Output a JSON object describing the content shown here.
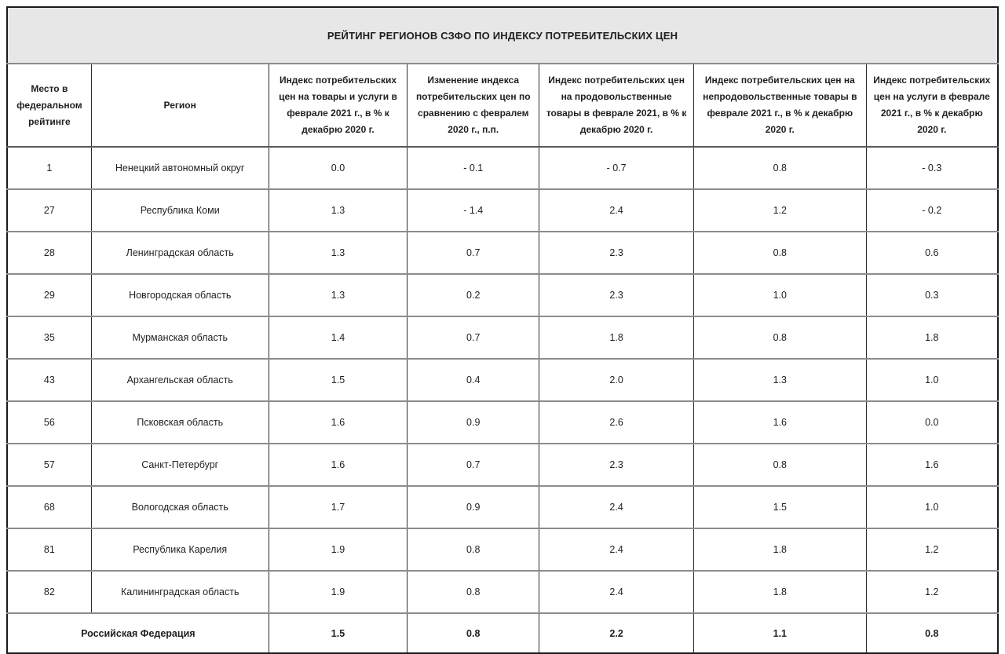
{
  "title": "РЕЙТИНГ РЕГИОНОВ СЗФО ПО ИНДЕКСУ ПОТРЕБИТЕЛЬСКИХ ЦЕН",
  "columns": [
    "Место в федеральном рейтинге",
    "Регион",
    "Индекс потребительских цен на товары и услуги в феврале 2021 г., в % к декабрю 2020 г.",
    "Изменение индекса потребительских цен по сравнению с февралем 2020 г., п.п.",
    "Индекс потребительских цен на продовольственные товары в феврале 2021, в % к декабрю 2020 г.",
    "Индекс потребительских цен на непродовольственные товары в феврале 2021 г., в % к декабрю 2020 г.",
    "Индекс потребительских цен на услуги в феврале 2021 г., в % к декабрю 2020 г."
  ],
  "rows": [
    {
      "place": "1",
      "region": "Ненецкий автономный округ",
      "values": [
        "0.0",
        "- 0.1",
        "- 0.7",
        "0.8",
        "- 0.3"
      ]
    },
    {
      "place": "27",
      "region": "Республика Коми",
      "values": [
        "1.3",
        "- 1.4",
        "2.4",
        "1.2",
        "- 0.2"
      ]
    },
    {
      "place": "28",
      "region": "Ленинградская область",
      "values": [
        "1.3",
        "0.7",
        "2.3",
        "0.8",
        "0.6"
      ]
    },
    {
      "place": "29",
      "region": "Новгородская область",
      "values": [
        "1.3",
        "0.2",
        "2.3",
        "1.0",
        "0.3"
      ]
    },
    {
      "place": "35",
      "region": "Мурманская область",
      "values": [
        "1.4",
        "0.7",
        "1.8",
        "0.8",
        "1.8"
      ]
    },
    {
      "place": "43",
      "region": "Архангельская область",
      "values": [
        "1.5",
        "0.4",
        "2.0",
        "1.3",
        "1.0"
      ]
    },
    {
      "place": "56",
      "region": "Псковская область",
      "values": [
        "1.6",
        "0.9",
        "2.6",
        "1.6",
        "0.0"
      ]
    },
    {
      "place": "57",
      "region": "Санкт-Петербург",
      "values": [
        "1.6",
        "0.7",
        "2.3",
        "0.8",
        "1.6"
      ]
    },
    {
      "place": "68",
      "region": "Вологодская область",
      "values": [
        "1.7",
        "0.9",
        "2.4",
        "1.5",
        "1.0"
      ]
    },
    {
      "place": "81",
      "region": "Республика Карелия",
      "values": [
        "1.9",
        "0.8",
        "2.4",
        "1.8",
        "1.2"
      ]
    },
    {
      "place": "82",
      "region": "Калининградская область",
      "values": [
        "1.9",
        "0.8",
        "2.4",
        "1.8",
        "1.2"
      ]
    }
  ],
  "footer": {
    "label": "Российская Федерация",
    "values": [
      "1.5",
      "0.8",
      "2.2",
      "1.1",
      "0.8"
    ]
  },
  "colors": {
    "title_bg": "#e7e7e7",
    "outer_border": "#1a1a1a",
    "vertical_border": "#2b2b2b",
    "row_separator": "#8c8c8c",
    "text": "#1f1f1f"
  }
}
